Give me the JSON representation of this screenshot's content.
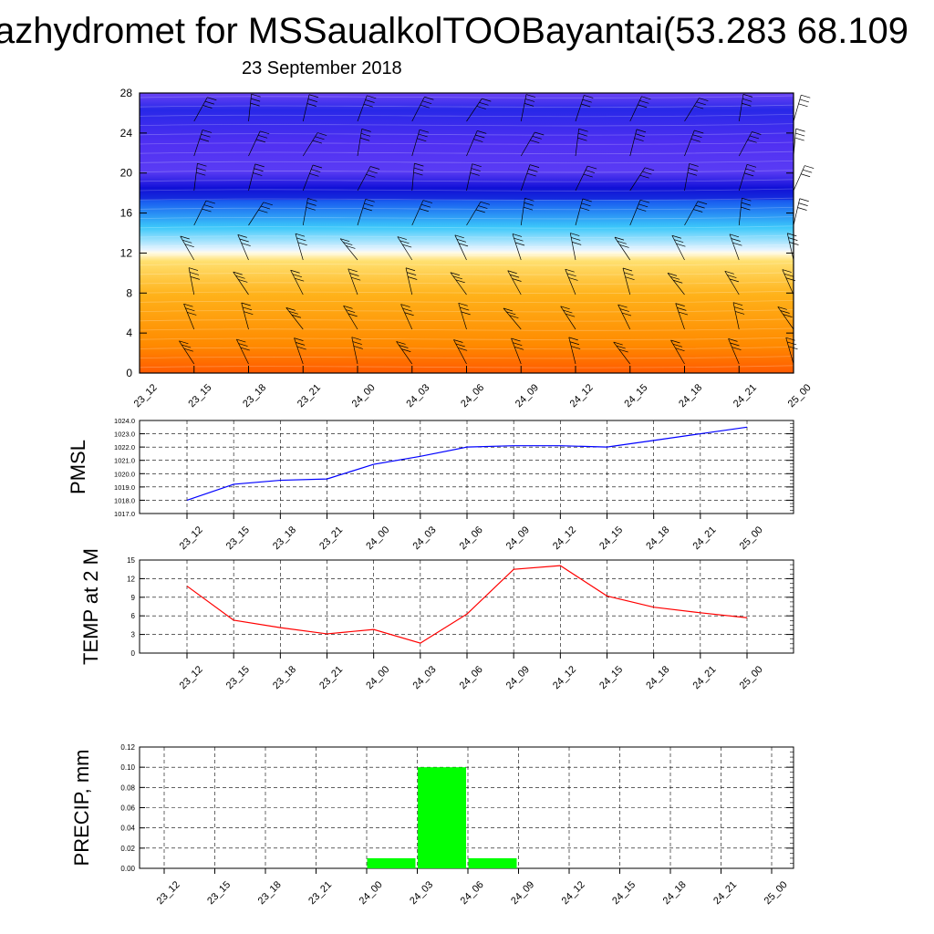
{
  "title": "azhydromet for MSSaualkolTOOBayantai(53.283 68.109",
  "subtitle": "23 September 2018",
  "chart_data": [
    {
      "type": "heatmap",
      "description": "time-height cross-section with wind barbs",
      "x": [
        "23_12",
        "23_15",
        "23_18",
        "23_21",
        "24_00",
        "24_03",
        "24_06",
        "24_09",
        "24_12",
        "24_15",
        "24_18",
        "24_21",
        "25_00"
      ],
      "y_ticks": [
        "0",
        "4",
        "8",
        "12",
        "16",
        "20",
        "24",
        "28"
      ],
      "ylim": [
        0,
        28
      ],
      "colors": {
        "low": "#ff6a00",
        "mid": "#ffd86a",
        "white_band": "#f4f8ff",
        "cyan": "#38c8f8",
        "blue": "#2020e0",
        "top": "#6a3cf6"
      }
    },
    {
      "type": "line",
      "ylabel": "PMSL",
      "x": [
        "23_12",
        "23_15",
        "23_18",
        "23_21",
        "24_00",
        "24_03",
        "24_06",
        "24_09",
        "24_12",
        "24_15",
        "24_18",
        "24_21",
        "25_00"
      ],
      "series": [
        {
          "values": [
            1018.0,
            1019.2,
            1019.5,
            1019.6,
            1020.7,
            1021.3,
            1022.0,
            1022.1,
            1022.1,
            1022.0,
            1022.5,
            1023.0,
            1023.5
          ],
          "color": "#0000ff"
        }
      ],
      "y_ticks": [
        "1017.0",
        "1018.0",
        "1019.0",
        "1020.0",
        "1021.0",
        "1022.0",
        "1023.0",
        "1024.0"
      ],
      "ylim": [
        1017,
        1024
      ]
    },
    {
      "type": "line",
      "ylabel": "TEMP at 2 M",
      "x": [
        "23_12",
        "23_15",
        "23_18",
        "23_21",
        "24_00",
        "24_03",
        "24_06",
        "24_09",
        "24_12",
        "24_15",
        "24_18",
        "24_21",
        "25_00"
      ],
      "series": [
        {
          "values": [
            10.8,
            5.3,
            4.1,
            3.1,
            3.8,
            1.6,
            6.3,
            13.5,
            14.1,
            9.2,
            7.4,
            6.5,
            5.7
          ],
          "color": "#ff0000"
        }
      ],
      "y_ticks": [
        "0",
        "3",
        "6",
        "9",
        "12",
        "15"
      ],
      "ylim": [
        0,
        15
      ]
    },
    {
      "type": "bar",
      "ylabel": "PRECIP, mm",
      "categories": [
        "23_12",
        "23_15",
        "23_18",
        "23_21",
        "24_00",
        "24_03",
        "24_06",
        "24_09",
        "24_12",
        "24_15",
        "24_18",
        "24_21",
        "25_00"
      ],
      "values": [
        0,
        0,
        0,
        0,
        0.01,
        0.1,
        0.01,
        0,
        0,
        0,
        0,
        0,
        0
      ],
      "color": "#00ff00",
      "y_ticks": [
        "0.00",
        "0.02",
        "0.04",
        "0.06",
        "0.08",
        "0.10",
        "0.12"
      ],
      "ylim": [
        0,
        0.12
      ]
    }
  ]
}
